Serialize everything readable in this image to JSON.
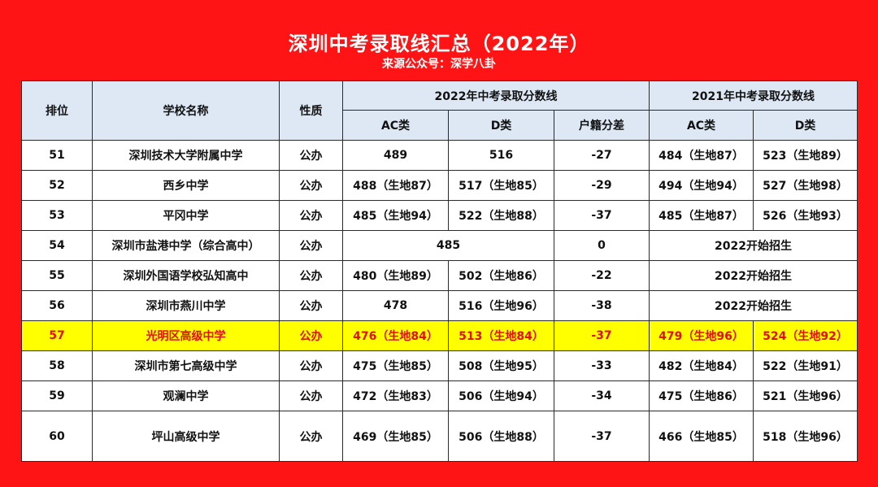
{
  "title": "深圳中考录取线汇总（2022年）",
  "source": "来源公众号：深学八卦",
  "headers": {
    "rank": "排位",
    "school": "学校名称",
    "nature": "性质",
    "group2022": "2022年中考录取分数线",
    "group2021": "2021年中考录取分数线",
    "ac": "AC类",
    "d": "D类",
    "diff": "户籍分差",
    "ac21": "AC类",
    "d21": "D类"
  },
  "highlight_color": "#ffff00",
  "highlight_text_color": "#e01010",
  "rows": [
    {
      "rank": "51",
      "school": "深圳技术大学附属中学",
      "nature": "公办",
      "ac": "489",
      "d": "516",
      "diff": "-27",
      "ac21": "484（生地87）",
      "d21": "523（生地89）"
    },
    {
      "rank": "52",
      "school": "西乡中学",
      "nature": "公办",
      "ac": "488（生地87）",
      "d": "517（生地85）",
      "diff": "-29",
      "ac21": "494（生地94）",
      "d21": "527（生地98）"
    },
    {
      "rank": "53",
      "school": "平冈中学",
      "nature": "公办",
      "ac": "485（生地94）",
      "d": "522（生地88）",
      "diff": "-37",
      "ac21": "485（生地87）",
      "d21": "526（生地93）"
    },
    {
      "rank": "54",
      "school": "深圳市盐港中学（综合高中）",
      "nature": "公办",
      "acd": "485",
      "diff": "0",
      "y2021": "2022开始招生"
    },
    {
      "rank": "55",
      "school": "深圳外国语学校弘知高中",
      "nature": "公办",
      "ac": "480（生地89）",
      "d": "502（生地86）",
      "diff": "-22",
      "y2021": "2022开始招生"
    },
    {
      "rank": "56",
      "school": "深圳市燕川中学",
      "nature": "公办",
      "ac": "478",
      "d": "516（生地96）",
      "diff": "-38",
      "y2021": "2022开始招生"
    },
    {
      "rank": "57",
      "school": "光明区高级中学",
      "nature": "公办",
      "ac": "476（生地84）",
      "d": "513（生地84）",
      "diff": "-37",
      "ac21": "479（生地96）",
      "d21": "524（生地92）"
    },
    {
      "rank": "58",
      "school": "深圳市第七高级中学",
      "nature": "公办",
      "ac": "475（生地85）",
      "d": "508（生地95）",
      "diff": "-33",
      "ac21": "482（生地84）",
      "d21": "522（生地91）"
    },
    {
      "rank": "59",
      "school": "观澜中学",
      "nature": "公办",
      "ac": "472（生地83）",
      "d": "506（生地94）",
      "diff": "-34",
      "ac21": "475（生地86）",
      "d21": "521（生地96）"
    },
    {
      "rank": "60",
      "school": "坪山高级中学",
      "nature": "公办",
      "ac": "469（生地85）",
      "d": "506（生地88）",
      "diff": "-37",
      "ac21": "466（生地85）",
      "d21": "518（生地96）"
    }
  ]
}
